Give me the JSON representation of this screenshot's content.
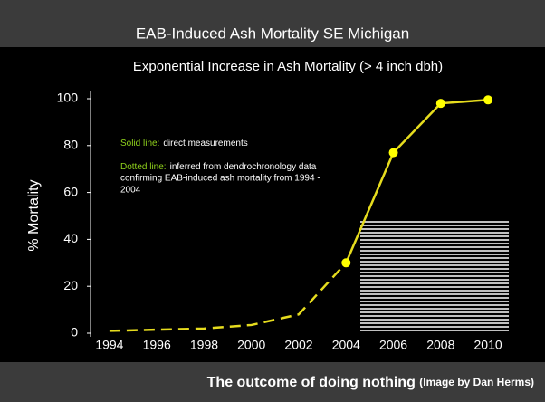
{
  "header": {
    "title": "EAB-Induced Ash Mortality SE Michigan"
  },
  "chart_data": {
    "type": "line",
    "title": "Exponential Increase in Ash Mortality (> 4 inch dbh)",
    "y_label": "% Mortality",
    "xlim": [
      1993.2,
      2010.8
    ],
    "xticks": [
      1994,
      1996,
      1998,
      2000,
      2002,
      2004,
      2006,
      2008,
      2010
    ],
    "ylim": [
      0,
      100
    ],
    "yticks": [
      0,
      20,
      40,
      60,
      80,
      100
    ],
    "series": [
      {
        "color": "#e6dc1e",
        "style": "dashed",
        "markers": false,
        "x": [
          1994,
          1996,
          1998,
          2000,
          2002,
          2004
        ],
        "values": [
          1,
          1.5,
          2,
          3.5,
          8,
          30
        ]
      },
      {
        "color": "#e6dc1e",
        "style": "solid",
        "markers": true,
        "x": [
          2004,
          2006,
          2008,
          2010
        ],
        "values": [
          30,
          77,
          98,
          99.5
        ]
      }
    ],
    "annotations": [
      {
        "key": "Solid line:",
        "lines": [
          "direct measurements"
        ]
      },
      {
        "key": "Dotted line:",
        "lines": [
          "inferred from dendrochronology data",
          "confirming EAB-induced ash mortality from 1994 -",
          "2004"
        ]
      }
    ]
  },
  "footer": {
    "main": "The outcome of doing nothing",
    "credit": "(Image by Dan Herms)"
  }
}
